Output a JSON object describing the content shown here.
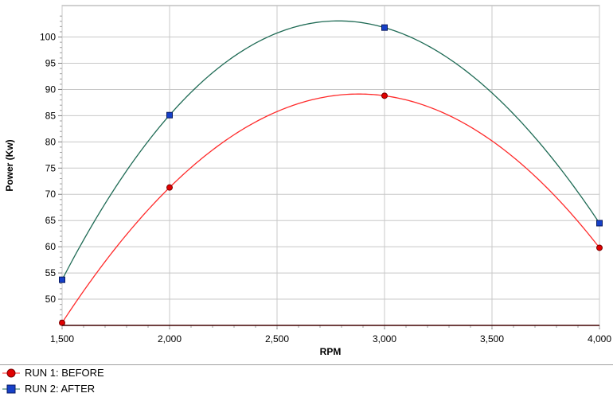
{
  "chart_data": {
    "type": "line",
    "xlabel": "RPM",
    "ylabel": "Power (Kw)",
    "xlim": [
      1500,
      4000
    ],
    "ylim": [
      45,
      106
    ],
    "x_ticks": [
      "1,500",
      "2,000",
      "2,500",
      "3,000",
      "3,500",
      "4,000"
    ],
    "x_tick_values": [
      1500,
      2000,
      2500,
      3000,
      3500,
      4000
    ],
    "y_ticks": [
      "50",
      "55",
      "60",
      "65",
      "70",
      "75",
      "80",
      "85",
      "90",
      "95",
      "100"
    ],
    "y_tick_values": [
      50,
      55,
      60,
      65,
      70,
      75,
      80,
      85,
      90,
      95,
      100
    ],
    "grid": true,
    "legend_position": "bottom-left",
    "series": [
      {
        "name": "RUN 1: BEFORE",
        "color": "#ff2a2a",
        "marker": "circle",
        "x": [
          1500,
          2000,
          3000,
          4000
        ],
        "y": [
          45.5,
          71.3,
          88.8,
          59.8
        ]
      },
      {
        "name": "RUN 2: AFTER",
        "color": "#1f6b55",
        "marker_color": "#1640c8",
        "marker": "square",
        "x": [
          1500,
          2000,
          3000,
          4000
        ],
        "y": [
          53.7,
          85.1,
          101.8,
          64.5
        ]
      }
    ]
  }
}
